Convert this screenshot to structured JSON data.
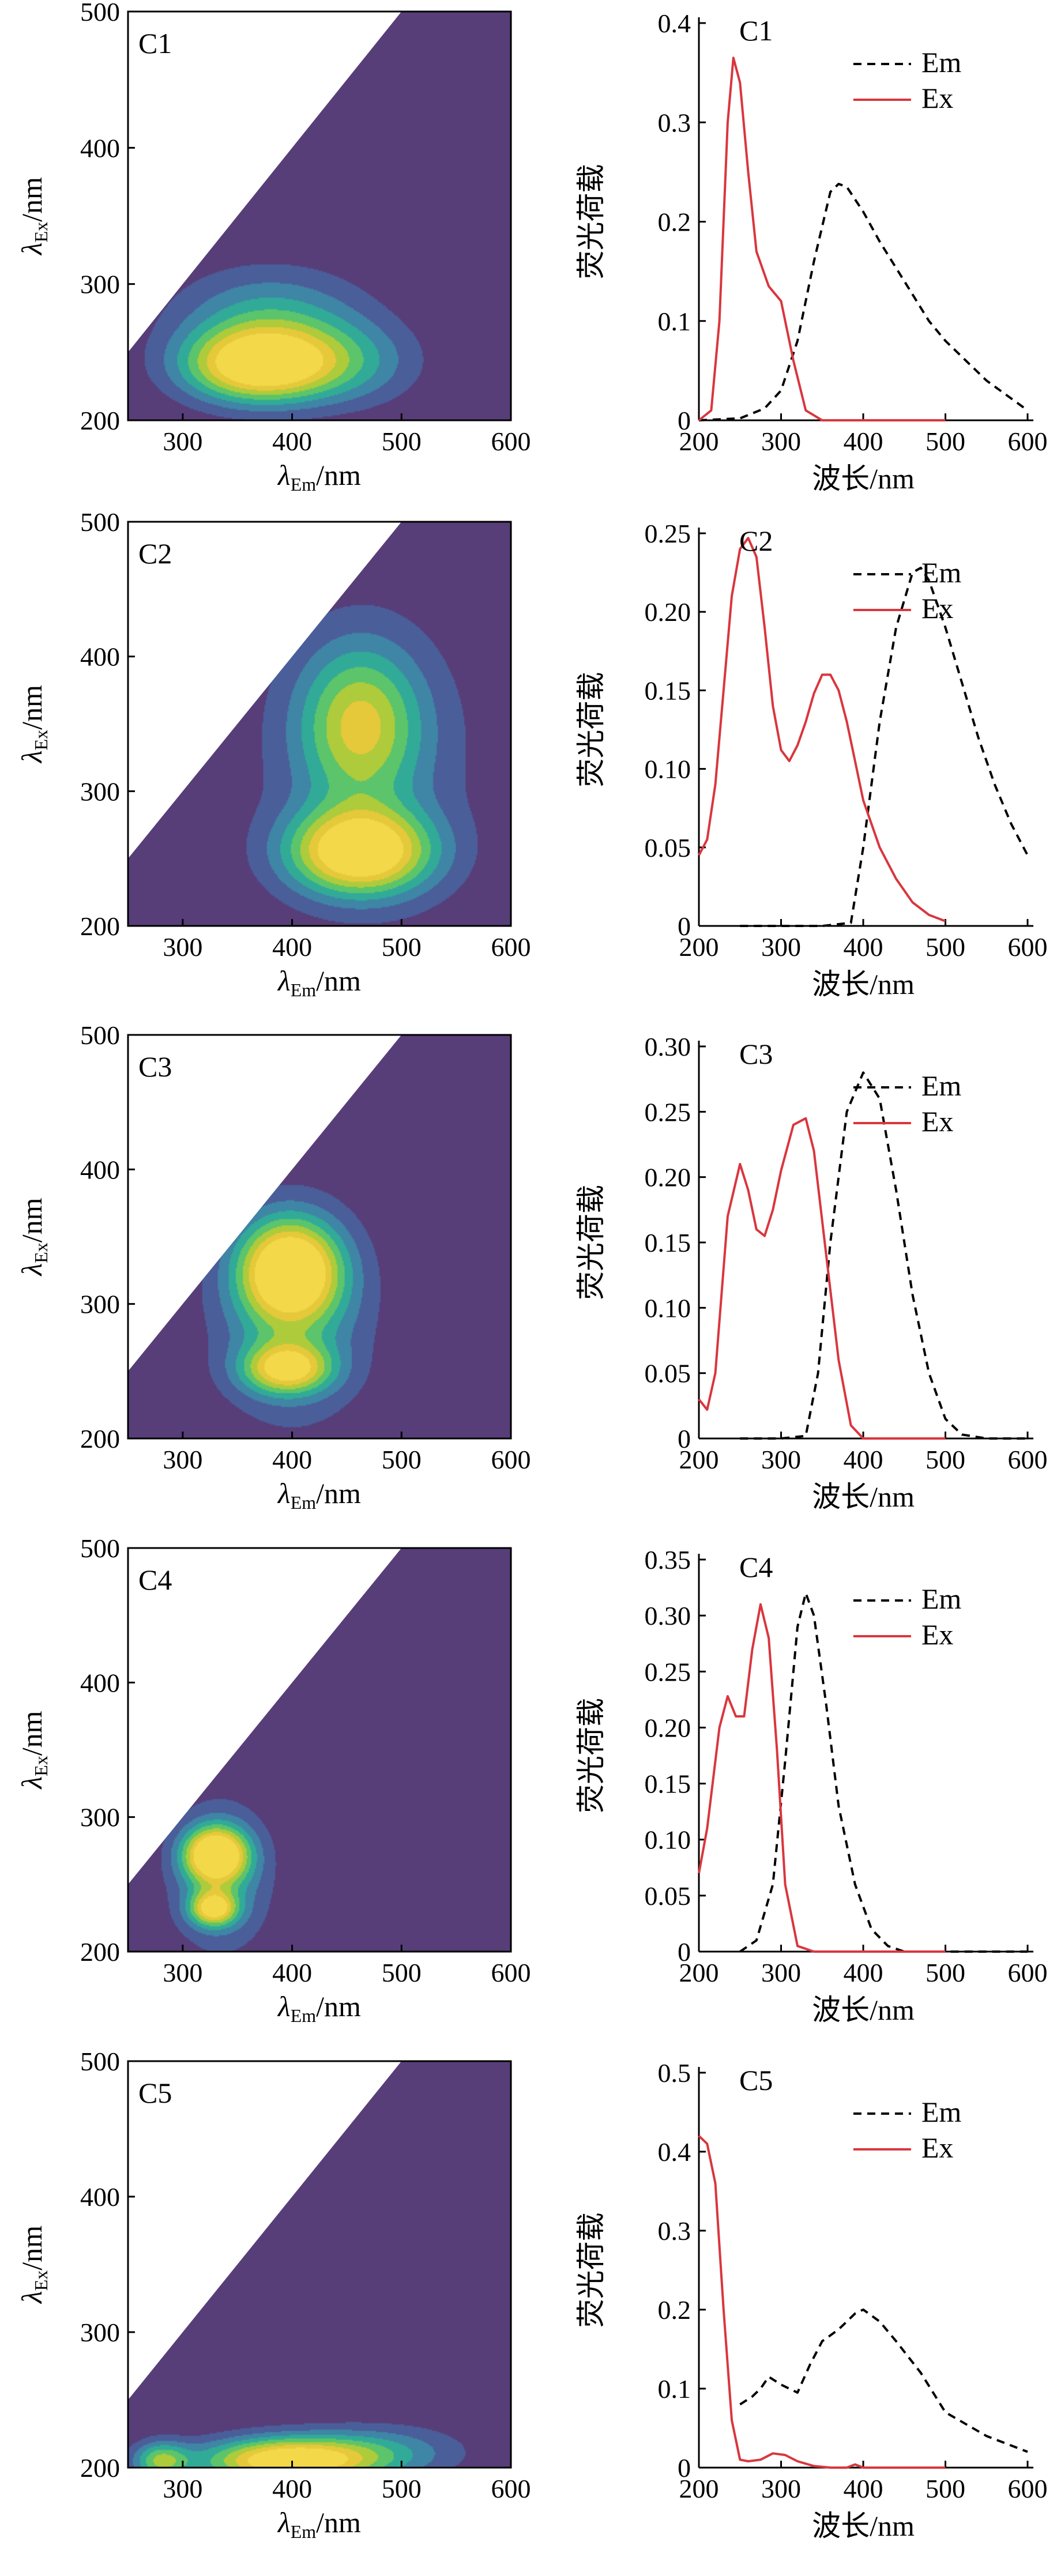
{
  "colors": {
    "background_purple": "#573e79",
    "contour_line": "#444444",
    "em_line": "#000000",
    "ex_line": "#d9363e",
    "levels": [
      "#573e79",
      "#4a5e9a",
      "#3f85a5",
      "#31aa98",
      "#5cc46b",
      "#aecb3b",
      "#e5c93b",
      "#f3d94a"
    ]
  },
  "chart_data": [
    {
      "type": "heatmap",
      "label": "C1",
      "xlabel_main": "λ",
      "xlabel_sub": "Em",
      "xlabel_unit": "/nm",
      "ylabel_main": "λ",
      "ylabel_sub": "Ex",
      "ylabel_unit": "/nm",
      "xlim": [
        250,
        600
      ],
      "ylim": [
        200,
        500
      ],
      "xticks": [
        300,
        400,
        500,
        600
      ],
      "yticks": [
        200,
        300,
        400,
        500
      ],
      "peaks": [
        {
          "em": 370,
          "ex": 240,
          "sem": 48,
          "sex": 19,
          "amp": 1.0
        },
        {
          "em": 380,
          "ex": 275,
          "sem": 60,
          "sex": 26,
          "amp": 0.38
        },
        {
          "em": 455,
          "ex": 242,
          "sem": 45,
          "sex": 22,
          "amp": 0.28
        }
      ]
    },
    {
      "type": "line",
      "label": "C2",
      "xlabel": "波长/nm",
      "ylabel": "荧光荷载",
      "xlim": [
        200,
        600
      ],
      "ylim": [
        0,
        0.25
      ],
      "xticks": [
        200,
        300,
        400,
        500,
        600
      ],
      "yticks": [
        0,
        0.05,
        0.1,
        0.15,
        0.2,
        0.25
      ],
      "ytick_labels": [
        "0",
        "0.05",
        "0.10",
        "0.15",
        "0.20",
        "0.25"
      ],
      "legend_position": "top-right",
      "series": [
        {
          "name": "Em",
          "style": "dashed",
          "x": [
            250,
            300,
            350,
            385,
            400,
            420,
            440,
            460,
            470,
            480,
            500,
            520,
            540,
            560,
            580,
            600
          ],
          "y": [
            0,
            0,
            0,
            0.002,
            0.05,
            0.13,
            0.19,
            0.225,
            0.228,
            0.22,
            0.19,
            0.155,
            0.12,
            0.09,
            0.065,
            0.045
          ]
        },
        {
          "name": "Ex",
          "style": "solid",
          "x": [
            200,
            210,
            220,
            230,
            240,
            250,
            260,
            270,
            280,
            290,
            300,
            310,
            320,
            330,
            340,
            350,
            360,
            370,
            380,
            390,
            400,
            420,
            440,
            460,
            480,
            500
          ],
          "y": [
            0.045,
            0.055,
            0.09,
            0.15,
            0.21,
            0.24,
            0.247,
            0.235,
            0.19,
            0.14,
            0.112,
            0.105,
            0.115,
            0.13,
            0.148,
            0.16,
            0.16,
            0.15,
            0.13,
            0.105,
            0.08,
            0.05,
            0.03,
            0.015,
            0.007,
            0.003
          ]
        }
      ]
    },
    {
      "type": "heatmap",
      "label": "C2",
      "xlabel_main": "λ",
      "xlabel_sub": "Em",
      "xlabel_unit": "/nm",
      "ylabel_main": "λ",
      "ylabel_sub": "Ex",
      "ylabel_unit": "/nm",
      "xlim": [
        250,
        600
      ],
      "ylim": [
        200,
        500
      ],
      "xticks": [
        300,
        400,
        500,
        600
      ],
      "yticks": [
        200,
        300,
        400,
        500
      ],
      "peaks": [
        {
          "em": 462,
          "ex": 255,
          "sem": 45,
          "sex": 22,
          "amp": 1.0
        },
        {
          "em": 462,
          "ex": 350,
          "sem": 38,
          "sex": 40,
          "amp": 0.6
        },
        {
          "em": 470,
          "ex": 320,
          "sem": 75,
          "sex": 80,
          "amp": 0.2
        }
      ]
    },
    {
      "type": "line",
      "label": "C1",
      "xlabel": "波长/nm",
      "ylabel": "荧光荷载",
      "xlim": [
        200,
        600
      ],
      "ylim": [
        0,
        0.4
      ],
      "xticks": [
        200,
        300,
        400,
        500,
        600
      ],
      "yticks": [
        0,
        0.1,
        0.2,
        0.3,
        0.4
      ],
      "ytick_labels": [
        "0",
        "0.1",
        "0.2",
        "0.3",
        "0.4"
      ],
      "legend_position": "top-right",
      "series": [
        {
          "name": "Em",
          "style": "dashed",
          "x": [
            200,
            250,
            280,
            300,
            320,
            340,
            360,
            370,
            380,
            400,
            420,
            450,
            480,
            500,
            550,
            600
          ],
          "y": [
            0,
            0.002,
            0.012,
            0.03,
            0.08,
            0.16,
            0.23,
            0.238,
            0.235,
            0.21,
            0.18,
            0.14,
            0.1,
            0.08,
            0.04,
            0.01
          ]
        },
        {
          "name": "Ex",
          "style": "solid",
          "x": [
            200,
            215,
            225,
            235,
            242,
            250,
            260,
            270,
            285,
            300,
            315,
            330,
            350,
            400,
            450,
            500
          ],
          "y": [
            0,
            0.01,
            0.1,
            0.3,
            0.365,
            0.34,
            0.25,
            0.17,
            0.135,
            0.12,
            0.06,
            0.01,
            0,
            0,
            0,
            0
          ]
        }
      ]
    },
    {
      "type": "heatmap",
      "label": "C3",
      "xlabel_main": "λ",
      "xlabel_sub": "Em",
      "xlabel_unit": "/nm",
      "ylabel_main": "λ",
      "ylabel_sub": "Ex",
      "ylabel_unit": "/nm",
      "xlim": [
        250,
        600
      ],
      "ylim": [
        200,
        500
      ],
      "xticks": [
        300,
        400,
        500,
        600
      ],
      "yticks": [
        200,
        300,
        400,
        500
      ],
      "peaks": [
        {
          "em": 398,
          "ex": 325,
          "sem": 32,
          "sex": 26,
          "amp": 1.0
        },
        {
          "em": 395,
          "ex": 252,
          "sem": 28,
          "sex": 13,
          "amp": 0.75
        },
        {
          "em": 400,
          "ex": 290,
          "sem": 50,
          "sex": 55,
          "amp": 0.35
        }
      ]
    },
    {
      "type": "line",
      "label": "C3",
      "xlabel": "波长/nm",
      "ylabel": "荧光荷载",
      "xlim": [
        200,
        600
      ],
      "ylim": [
        0,
        0.3
      ],
      "xticks": [
        200,
        300,
        400,
        500,
        600
      ],
      "yticks": [
        0,
        0.05,
        0.1,
        0.15,
        0.2,
        0.25,
        0.3
      ],
      "ytick_labels": [
        "0",
        "0.05",
        "0.10",
        "0.15",
        "0.20",
        "0.25",
        "0.30"
      ],
      "legend_position": "top-right",
      "series": [
        {
          "name": "Em",
          "style": "dashed",
          "x": [
            250,
            300,
            330,
            345,
            360,
            380,
            400,
            420,
            440,
            460,
            480,
            500,
            520,
            550,
            600
          ],
          "y": [
            0,
            0,
            0.002,
            0.05,
            0.15,
            0.25,
            0.28,
            0.26,
            0.19,
            0.11,
            0.05,
            0.015,
            0.003,
            0,
            0
          ]
        },
        {
          "name": "Ex",
          "style": "solid",
          "x": [
            200,
            210,
            220,
            235,
            250,
            260,
            270,
            280,
            290,
            300,
            315,
            330,
            340,
            355,
            370,
            385,
            400,
            450,
            500
          ],
          "y": [
            0.03,
            0.022,
            0.05,
            0.17,
            0.21,
            0.19,
            0.16,
            0.155,
            0.175,
            0.205,
            0.24,
            0.245,
            0.22,
            0.14,
            0.06,
            0.01,
            0,
            0,
            0
          ]
        }
      ]
    },
    {
      "type": "heatmap",
      "label": "C4",
      "xlabel_main": "λ",
      "xlabel_sub": "Em",
      "xlabel_unit": "/nm",
      "ylabel_main": "λ",
      "ylabel_sub": "Ex",
      "ylabel_unit": "/nm",
      "xlim": [
        250,
        600
      ],
      "ylim": [
        200,
        500
      ],
      "xticks": [
        300,
        400,
        500,
        600
      ],
      "yticks": [
        200,
        300,
        400,
        500
      ],
      "peaks": [
        {
          "em": 330,
          "ex": 272,
          "sem": 20,
          "sex": 14,
          "amp": 1.0
        },
        {
          "em": 328,
          "ex": 232,
          "sem": 15,
          "sex": 9,
          "amp": 0.75
        },
        {
          "em": 335,
          "ex": 255,
          "sem": 32,
          "sex": 38,
          "amp": 0.35
        }
      ]
    },
    {
      "type": "line",
      "label": "C4",
      "xlabel": "波长/nm",
      "ylabel": "荧光荷载",
      "xlim": [
        200,
        600
      ],
      "ylim": [
        0,
        0.35
      ],
      "xticks": [
        200,
        300,
        400,
        500,
        600
      ],
      "yticks": [
        0,
        0.05,
        0.1,
        0.15,
        0.2,
        0.25,
        0.3,
        0.35
      ],
      "ytick_labels": [
        "0",
        "0.05",
        "0.10",
        "0.15",
        "0.20",
        "0.25",
        "0.30",
        "0.35"
      ],
      "legend_position": "top-right",
      "series": [
        {
          "name": "Em",
          "style": "dashed",
          "x": [
            250,
            270,
            290,
            305,
            320,
            330,
            340,
            355,
            370,
            390,
            410,
            430,
            450,
            500,
            600
          ],
          "y": [
            0,
            0.01,
            0.06,
            0.17,
            0.29,
            0.32,
            0.3,
            0.22,
            0.13,
            0.06,
            0.02,
            0.005,
            0,
            0,
            0
          ]
        },
        {
          "name": "Ex",
          "style": "solid",
          "x": [
            200,
            210,
            225,
            235,
            245,
            255,
            265,
            275,
            285,
            295,
            305,
            320,
            340,
            400,
            500
          ],
          "y": [
            0.07,
            0.11,
            0.2,
            0.228,
            0.21,
            0.21,
            0.27,
            0.31,
            0.28,
            0.18,
            0.06,
            0.005,
            0,
            0,
            0
          ]
        }
      ]
    },
    {
      "type": "heatmap",
      "label": "C5",
      "xlabel_main": "λ",
      "xlabel_sub": "Em",
      "xlabel_unit": "/nm",
      "ylabel_main": "λ",
      "ylabel_sub": "Ex",
      "ylabel_unit": "/nm",
      "xlim": [
        250,
        600
      ],
      "ylim": [
        200,
        500
      ],
      "xticks": [
        300,
        400,
        500,
        600
      ],
      "yticks": [
        200,
        300,
        400,
        500
      ],
      "peaks": [
        {
          "em": 395,
          "ex": 205,
          "sem": 55,
          "sex": 12,
          "amp": 1.0
        },
        {
          "em": 280,
          "ex": 205,
          "sem": 18,
          "sex": 10,
          "amp": 0.55
        },
        {
          "em": 480,
          "ex": 212,
          "sem": 55,
          "sex": 14,
          "amp": 0.3
        }
      ]
    },
    {
      "type": "line",
      "label": "C5",
      "xlabel": "波长/nm",
      "ylabel": "荧光荷载",
      "xlim": [
        200,
        600
      ],
      "ylim": [
        0,
        0.5
      ],
      "xticks": [
        200,
        300,
        400,
        500,
        600
      ],
      "yticks": [
        0,
        0.1,
        0.2,
        0.3,
        0.4,
        0.5
      ],
      "ytick_labels": [
        "0",
        "0.1",
        "0.2",
        "0.3",
        "0.4",
        "0.5"
      ],
      "legend_position": "top-right",
      "series": [
        {
          "name": "Em",
          "style": "dashed",
          "x": [
            250,
            265,
            275,
            285,
            300,
            320,
            335,
            350,
            370,
            390,
            400,
            420,
            440,
            470,
            500,
            550,
            600
          ],
          "y": [
            0.08,
            0.09,
            0.1,
            0.115,
            0.105,
            0.095,
            0.13,
            0.16,
            0.175,
            0.195,
            0.2,
            0.185,
            0.16,
            0.12,
            0.07,
            0.04,
            0.02
          ]
        },
        {
          "name": "Ex",
          "style": "solid",
          "x": [
            200,
            210,
            220,
            230,
            240,
            250,
            260,
            275,
            290,
            305,
            320,
            340,
            360,
            380,
            390,
            400,
            420,
            450,
            500
          ],
          "y": [
            0.42,
            0.41,
            0.36,
            0.2,
            0.06,
            0.01,
            0.008,
            0.01,
            0.018,
            0.016,
            0.008,
            0.002,
            0,
            0,
            0.004,
            0,
            0,
            0,
            0
          ]
        }
      ]
    }
  ]
}
